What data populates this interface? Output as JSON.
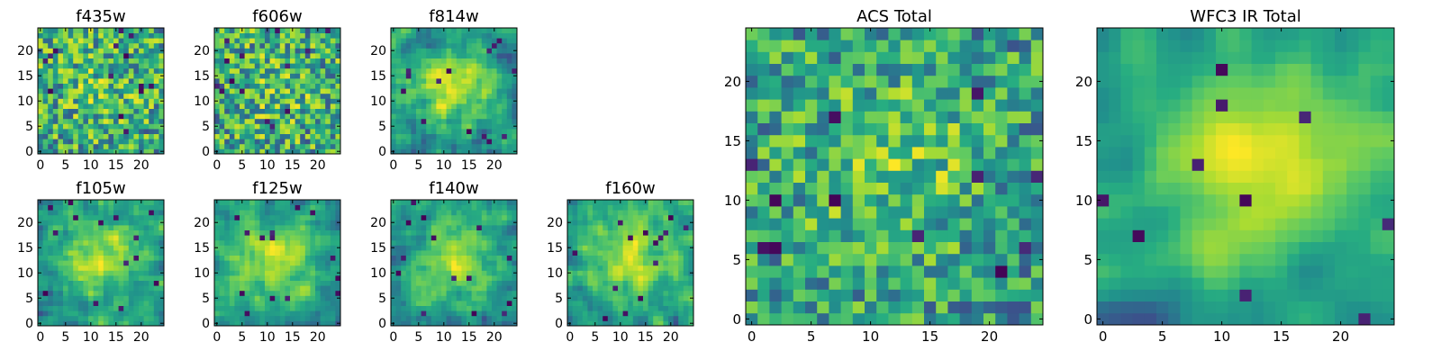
{
  "chart_data": [
    {
      "type": "heatmap",
      "title": "f435w",
      "xlabel": "",
      "ylabel": "",
      "xlim": [
        -0.5,
        24.5
      ],
      "ylim": [
        -0.5,
        24.5
      ],
      "grid": false,
      "colormap": "viridis",
      "xticks": [
        "0",
        "5",
        "10",
        "15",
        "20"
      ],
      "yticks": [
        "0",
        "5",
        "10",
        "15",
        "20"
      ],
      "size": [
        25,
        25
      ],
      "pattern": "noise",
      "seed": 11
    },
    {
      "type": "heatmap",
      "title": "f606w",
      "xlabel": "",
      "ylabel": "",
      "xlim": [
        -0.5,
        24.5
      ],
      "ylim": [
        -0.5,
        24.5
      ],
      "grid": false,
      "colormap": "viridis",
      "xticks": [
        "0",
        "5",
        "10",
        "15",
        "20"
      ],
      "yticks": [
        "0",
        "5",
        "10",
        "15",
        "20"
      ],
      "size": [
        25,
        25
      ],
      "pattern": "noise",
      "seed": 23
    },
    {
      "type": "heatmap",
      "title": "f814w",
      "xlabel": "",
      "ylabel": "",
      "xlim": [
        -0.5,
        24.5
      ],
      "ylim": [
        -0.5,
        24.5
      ],
      "grid": false,
      "colormap": "viridis",
      "xticks": [
        "0",
        "5",
        "10",
        "15",
        "20"
      ],
      "yticks": [
        "0",
        "5",
        "10",
        "15",
        "20"
      ],
      "size": [
        25,
        25
      ],
      "pattern": "blob",
      "seed": 37
    },
    {
      "type": "heatmap",
      "title": "f105w",
      "xlabel": "",
      "ylabel": "",
      "xlim": [
        -0.5,
        24.5
      ],
      "ylim": [
        -0.5,
        24.5
      ],
      "grid": false,
      "colormap": "viridis",
      "xticks": [
        "0",
        "5",
        "10",
        "15",
        "20"
      ],
      "yticks": [
        "0",
        "5",
        "10",
        "15",
        "20"
      ],
      "size": [
        25,
        25
      ],
      "pattern": "blob",
      "seed": 41
    },
    {
      "type": "heatmap",
      "title": "f125w",
      "xlabel": "",
      "ylabel": "",
      "xlim": [
        -0.5,
        24.5
      ],
      "ylim": [
        -0.5,
        24.5
      ],
      "grid": false,
      "colormap": "viridis",
      "xticks": [
        "0",
        "5",
        "10",
        "15",
        "20"
      ],
      "yticks": [
        "0",
        "5",
        "10",
        "15",
        "20"
      ],
      "size": [
        25,
        25
      ],
      "pattern": "blob",
      "seed": 53
    },
    {
      "type": "heatmap",
      "title": "f140w",
      "xlabel": "",
      "ylabel": "",
      "xlim": [
        -0.5,
        24.5
      ],
      "ylim": [
        -0.5,
        24.5
      ],
      "grid": false,
      "colormap": "viridis",
      "xticks": [
        "0",
        "5",
        "10",
        "15",
        "20"
      ],
      "yticks": [
        "0",
        "5",
        "10",
        "15",
        "20"
      ],
      "size": [
        25,
        25
      ],
      "pattern": "blob",
      "seed": 67
    },
    {
      "type": "heatmap",
      "title": "f160w",
      "xlabel": "",
      "ylabel": "",
      "xlim": [
        -0.5,
        24.5
      ],
      "ylim": [
        -0.5,
        24.5
      ],
      "grid": false,
      "colormap": "viridis",
      "xticks": [
        "0",
        "5",
        "10",
        "15",
        "20"
      ],
      "yticks": [
        "0",
        "5",
        "10",
        "15",
        "20"
      ],
      "size": [
        25,
        25
      ],
      "pattern": "blob",
      "seed": 79
    },
    {
      "type": "heatmap",
      "title": "ACS Total",
      "xlabel": "",
      "ylabel": "",
      "xlim": [
        -0.5,
        24.5
      ],
      "ylim": [
        -0.5,
        24.5
      ],
      "grid": false,
      "colormap": "viridis",
      "xticks": [
        "0",
        "5",
        "10",
        "15",
        "20"
      ],
      "yticks": [
        "0",
        "5",
        "10",
        "15",
        "20"
      ],
      "size": [
        25,
        25
      ],
      "pattern": "acs",
      "seed": 83
    },
    {
      "type": "heatmap",
      "title": "WFC3 IR Total",
      "xlabel": "",
      "ylabel": "",
      "xlim": [
        -0.5,
        24.5
      ],
      "ylim": [
        -0.5,
        24.5
      ],
      "grid": false,
      "colormap": "viridis",
      "xticks": [
        "0",
        "5",
        "10",
        "15",
        "20"
      ],
      "yticks": [
        "0",
        "5",
        "10",
        "15",
        "20"
      ],
      "size": [
        25,
        25
      ],
      "pattern": "ir",
      "seed": 97
    }
  ]
}
